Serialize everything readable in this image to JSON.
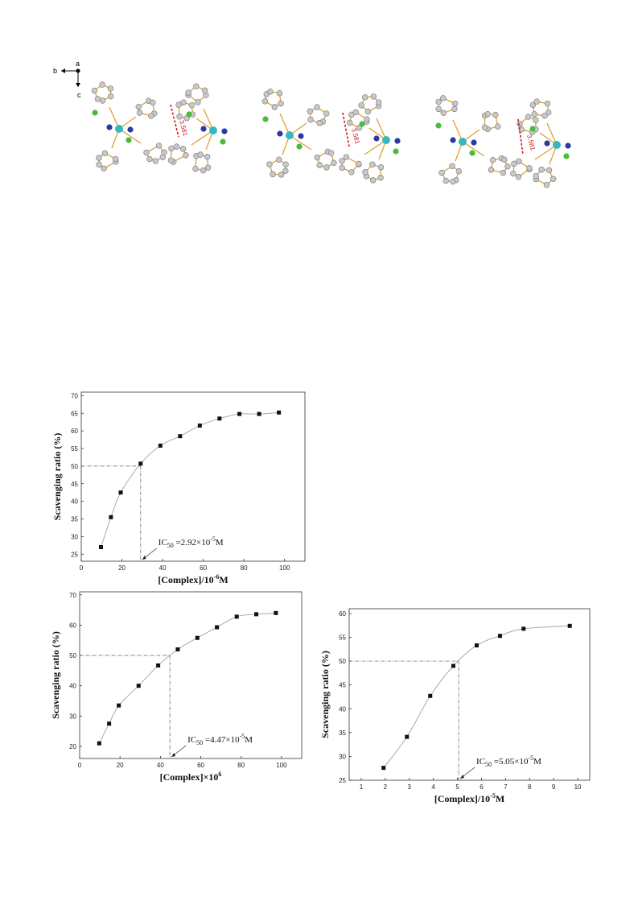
{
  "figure": {
    "axis_labels": [
      "b",
      "a",
      "c"
    ],
    "distance_labels": [
      "3.581",
      "3.581",
      "3.581"
    ]
  },
  "chart_data": [
    {
      "type": "scatter",
      "ylabel": "Scavenging ratio (%)",
      "xlabel": {
        "base": "[Complex]/10",
        "sup": "-6",
        "end": "M"
      },
      "annotation": {
        "base": "IC",
        "sub": "50",
        "mid": " =2.92×10",
        "sup": "-5",
        "end": "M"
      },
      "ic50": {
        "x": 29.2,
        "y": 50
      },
      "x": [
        9.7,
        14.6,
        19.4,
        29.2,
        38.9,
        48.6,
        58.3,
        68.0,
        77.8,
        87.5,
        97.2
      ],
      "values": [
        27.0,
        35.5,
        42.5,
        50.7,
        55.8,
        58.5,
        61.5,
        63.5,
        64.8,
        64.8,
        65.2
      ],
      "color": "#111111",
      "line_color": "#aaaaaa",
      "xlim": [
        0,
        110
      ],
      "xticks": [
        0,
        20,
        40,
        60,
        80,
        100
      ],
      "ylim": [
        23,
        71
      ],
      "yticks": [
        25,
        30,
        35,
        40,
        45,
        50,
        55,
        60,
        65,
        70
      ]
    },
    {
      "type": "scatter",
      "ylabel": "Scavenging ratio (%)",
      "xlabel": {
        "base": "[Complex]×10",
        "sup": "6"
      },
      "annotation": {
        "base": "IC",
        "sub": "50",
        "mid": " =4.47×10",
        "sup": "-5",
        "end": "M"
      },
      "ic50": {
        "x": 44.7,
        "y": 50
      },
      "x": [
        9.7,
        14.6,
        19.4,
        29.2,
        38.9,
        48.6,
        58.3,
        68.0,
        77.8,
        87.5,
        97.2
      ],
      "values": [
        21.0,
        27.5,
        33.5,
        40.0,
        46.7,
        52.0,
        55.8,
        59.3,
        62.8,
        63.6,
        64.0
      ],
      "color": "#111111",
      "line_color": "#aaaaaa",
      "xlim": [
        0,
        110
      ],
      "xticks": [
        0,
        20,
        40,
        60,
        80,
        100
      ],
      "ylim": [
        16,
        71
      ],
      "yticks": [
        20,
        30,
        40,
        50,
        60,
        70
      ]
    },
    {
      "type": "scatter",
      "ylabel": "Scavenging ratio (%)",
      "xlabel": {
        "base": "[Complex]/10",
        "sup": "-5",
        "end": "M"
      },
      "annotation": {
        "base": "IC",
        "sub": "50",
        "mid": " =5.05×10",
        "sup": "-5",
        "end": "M"
      },
      "ic50": {
        "x": 5.05,
        "y": 50
      },
      "x": [
        1.93,
        2.9,
        3.87,
        4.83,
        5.8,
        6.77,
        7.75,
        9.67
      ],
      "values": [
        27.6,
        34.1,
        42.7,
        49.0,
        53.3,
        55.3,
        56.8,
        57.4
      ],
      "color": "#111111",
      "line_color": "#aaaaaa",
      "xlim": [
        0.5,
        10.5
      ],
      "xticks": [
        1,
        2,
        3,
        4,
        5,
        6,
        7,
        8,
        9,
        10
      ],
      "ylim": [
        25,
        61
      ],
      "yticks": [
        25,
        30,
        35,
        40,
        45,
        50,
        55,
        60
      ]
    }
  ]
}
